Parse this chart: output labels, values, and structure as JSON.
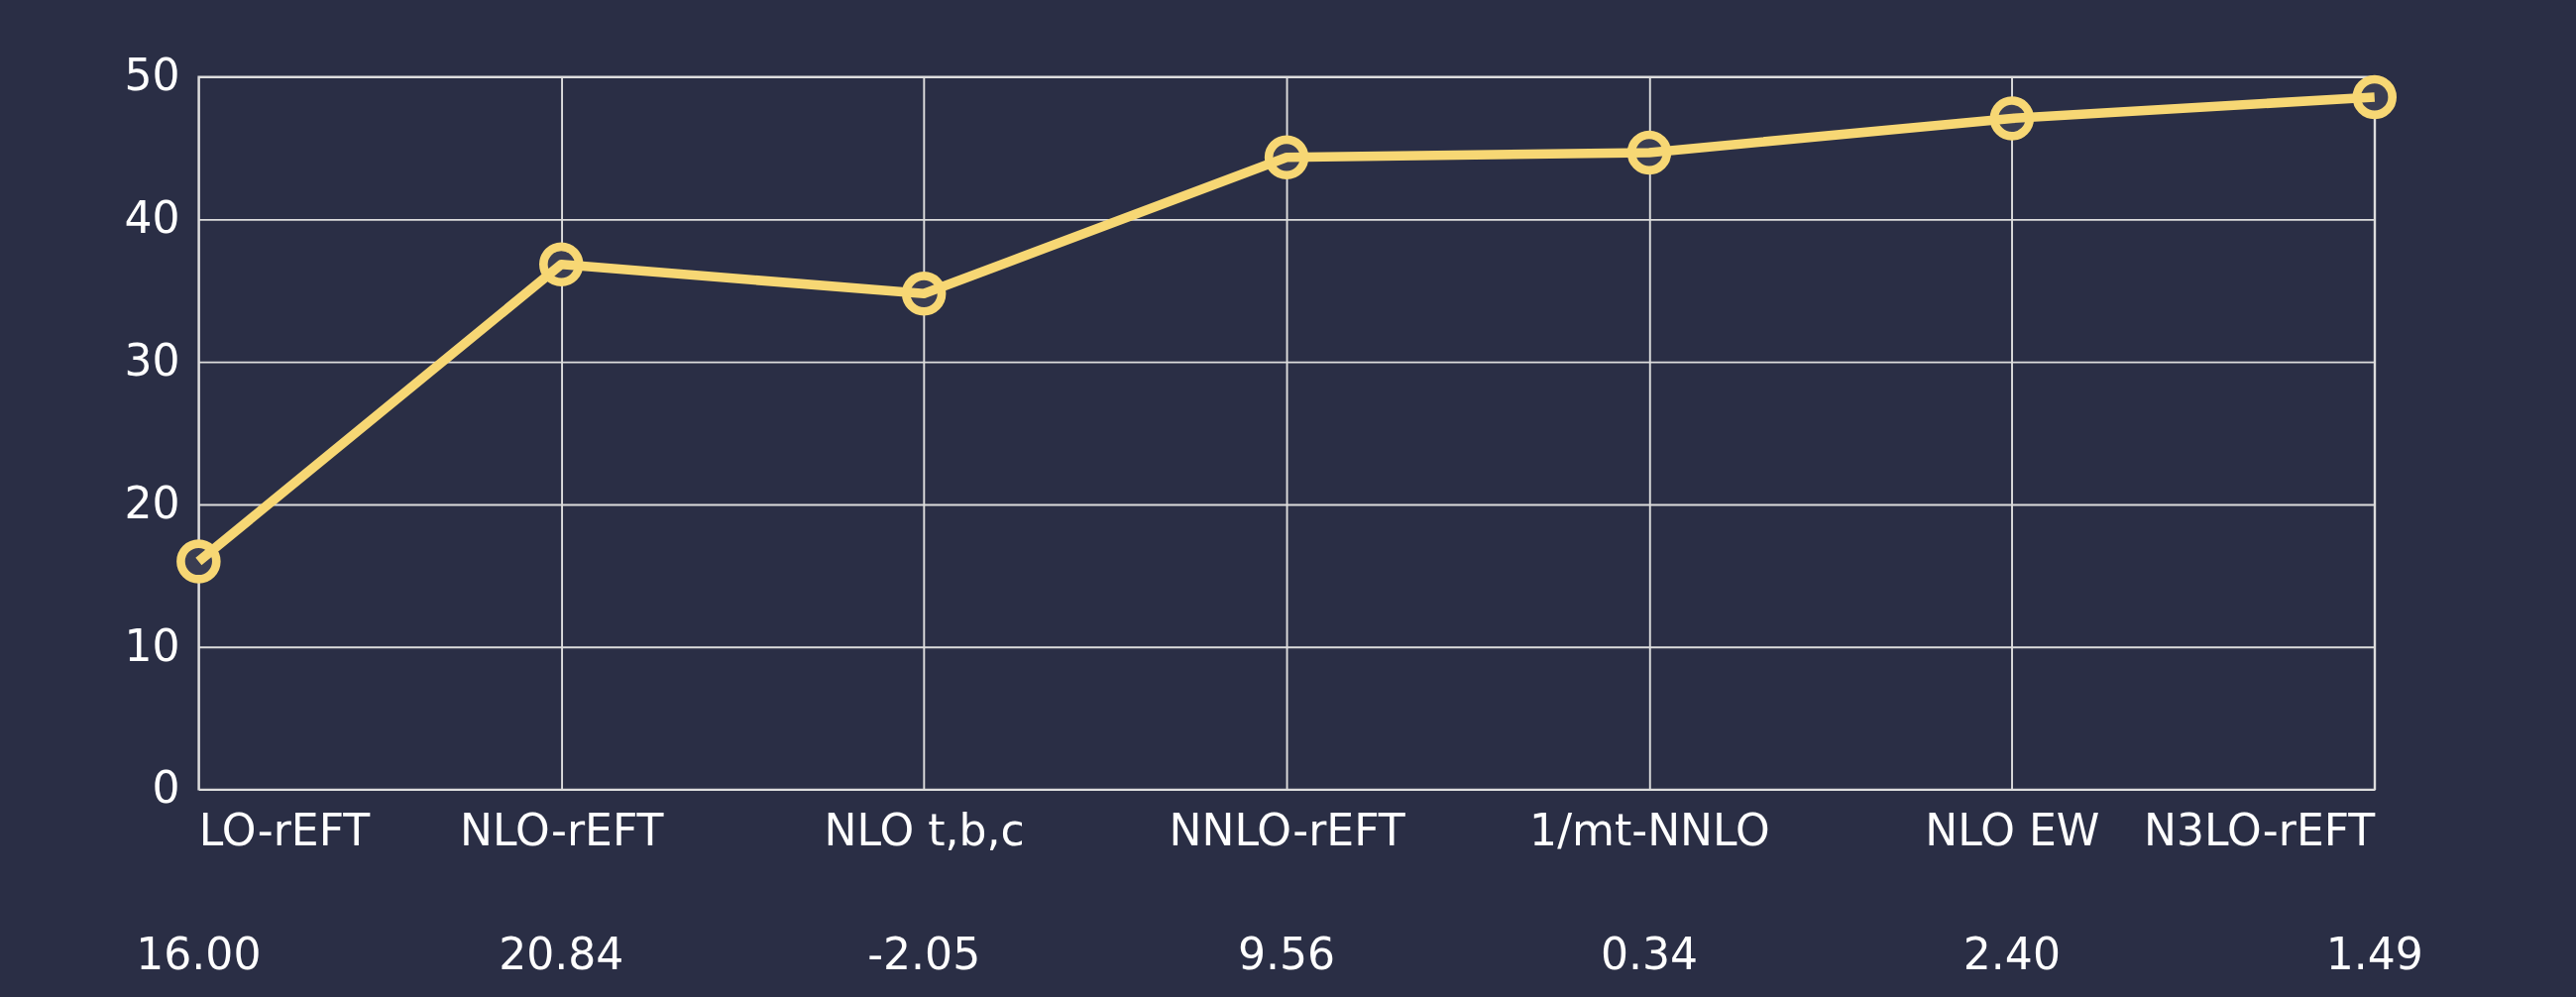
{
  "chart_data": {
    "type": "line",
    "categories": [
      "LO-rEFT",
      "NLO-rEFT",
      "NLO t,b,c",
      "NNLO-rEFT",
      "1/mt-NNLO",
      "NLO EW",
      "N3LO-rEFT"
    ],
    "series": [
      {
        "color": "#f7d774",
        "values": [
          16.0,
          36.84,
          34.79,
          44.35,
          44.69,
          47.09,
          48.58
        ]
      }
    ],
    "ylim": [
      0,
      50
    ],
    "yticks": [
      0,
      10,
      20,
      30,
      40,
      50
    ],
    "grid": true,
    "marker": "circle",
    "line_style": "solid",
    "annotations": [
      "16.00",
      "20.84",
      "-2.05",
      "9.56",
      "0.34",
      "2.40",
      "1.49"
    ]
  }
}
